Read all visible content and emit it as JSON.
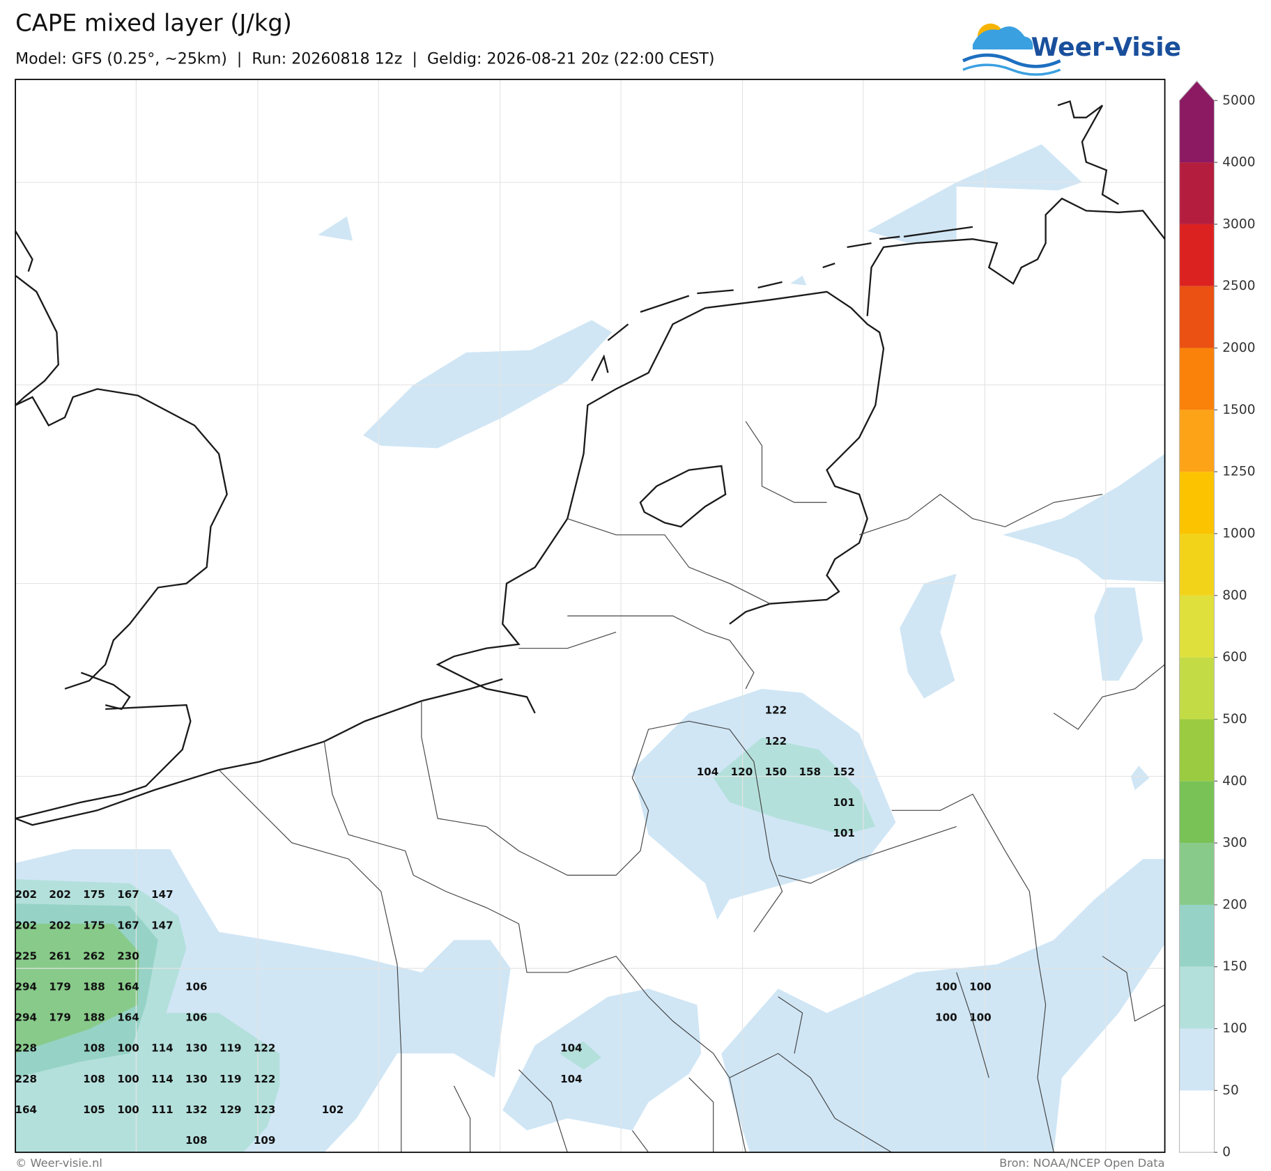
{
  "header": {
    "title": "CAPE mixed layer (J/kg)",
    "subtitle": "Model: GFS (0.25°, ~25km)  |  Run: 20260818 12z  |  Geldig: 2026-08-21 20z (22:00 CEST)"
  },
  "logo": {
    "text": "Weer-Visie"
  },
  "colorbar": {
    "levels": [
      0,
      50,
      100,
      150,
      200,
      300,
      400,
      500,
      600,
      800,
      1000,
      1250,
      1500,
      2000,
      2500,
      3000,
      4000,
      5000
    ],
    "colors": [
      "#ffffff",
      "#d0e6f5",
      "#b4e0dc",
      "#96d3c6",
      "#88ca8a",
      "#78c256",
      "#9bcb40",
      "#c3db45",
      "#e0e03c",
      "#f3d31a",
      "#fcc300",
      "#fda318",
      "#fa820a",
      "#ea5113",
      "#dc2220",
      "#b51d3e",
      "#8b1a63"
    ]
  },
  "grid_values": [
    [
      null,
      null,
      null,
      null,
      null,
      null,
      null,
      null,
      null,
      null,
      null,
      null,
      null,
      null,
      null,
      null,
      null,
      null,
      null,
      null,
      null,
      null,
      122,
      null,
      null,
      null,
      null,
      null,
      null
    ],
    [
      null,
      null,
      null,
      null,
      null,
      null,
      null,
      null,
      null,
      null,
      null,
      null,
      null,
      null,
      null,
      null,
      null,
      null,
      null,
      null,
      null,
      null,
      122,
      null,
      null,
      null,
      null,
      null,
      null
    ],
    [
      null,
      null,
      null,
      null,
      null,
      null,
      null,
      null,
      null,
      null,
      null,
      null,
      null,
      null,
      null,
      null,
      null,
      null,
      null,
      null,
      104,
      120,
      150,
      158,
      152,
      null,
      null,
      null,
      null
    ],
    [
      null,
      null,
      null,
      null,
      null,
      null,
      null,
      null,
      null,
      null,
      null,
      null,
      null,
      null,
      null,
      null,
      null,
      null,
      null,
      null,
      null,
      null,
      null,
      null,
      101,
      null,
      null,
      null,
      null
    ],
    [
      null,
      null,
      null,
      null,
      null,
      null,
      null,
      null,
      null,
      null,
      null,
      null,
      null,
      null,
      null,
      null,
      null,
      null,
      null,
      null,
      null,
      null,
      null,
      null,
      101,
      null,
      null,
      null,
      null
    ],
    [
      null,
      null,
      null,
      null,
      null,
      null,
      null,
      null,
      null,
      null,
      null,
      null,
      null,
      null,
      null,
      null,
      null,
      null,
      null,
      null,
      null,
      null,
      null,
      null,
      null,
      null,
      null,
      null,
      null
    ],
    [
      202,
      202,
      175,
      167,
      147,
      null,
      null,
      null,
      null,
      null,
      null,
      null,
      null,
      null,
      null,
      null,
      null,
      null,
      null,
      null,
      null,
      null,
      null,
      null,
      null,
      null,
      null,
      null,
      null
    ],
    [
      202,
      202,
      175,
      167,
      147,
      null,
      null,
      null,
      null,
      null,
      null,
      null,
      null,
      null,
      null,
      null,
      null,
      null,
      null,
      null,
      null,
      null,
      null,
      null,
      null,
      null,
      null,
      null,
      null
    ],
    [
      225,
      261,
      262,
      230,
      null,
      null,
      null,
      null,
      null,
      null,
      null,
      null,
      null,
      null,
      null,
      null,
      null,
      null,
      null,
      null,
      null,
      null,
      null,
      null,
      null,
      null,
      null,
      null,
      null
    ],
    [
      294,
      179,
      188,
      164,
      null,
      106,
      null,
      null,
      null,
      null,
      null,
      null,
      null,
      null,
      null,
      null,
      null,
      null,
      null,
      null,
      null,
      null,
      null,
      null,
      null,
      null,
      null,
      100,
      100
    ],
    [
      294,
      179,
      188,
      164,
      null,
      106,
      null,
      null,
      null,
      null,
      null,
      null,
      null,
      null,
      null,
      null,
      null,
      null,
      null,
      null,
      null,
      null,
      null,
      null,
      null,
      null,
      null,
      100,
      100
    ],
    [
      228,
      null,
      108,
      100,
      114,
      130,
      119,
      122,
      null,
      null,
      null,
      null,
      null,
      null,
      null,
      null,
      104,
      null,
      null,
      null,
      null,
      null,
      null,
      null,
      null,
      null,
      null,
      null,
      null
    ],
    [
      228,
      null,
      108,
      100,
      114,
      130,
      119,
      122,
      null,
      null,
      null,
      null,
      null,
      null,
      null,
      null,
      104,
      null,
      null,
      null,
      null,
      null,
      null,
      null,
      null,
      null,
      null,
      null,
      null
    ],
    [
      164,
      null,
      105,
      100,
      111,
      132,
      129,
      123,
      null,
      102,
      null,
      null,
      null,
      null,
      null,
      null,
      null,
      null,
      null,
      null,
      null,
      null,
      null,
      null,
      null,
      null,
      null,
      null,
      null
    ],
    [
      null,
      null,
      null,
      null,
      null,
      108,
      null,
      109,
      null,
      null,
      null,
      null,
      null,
      null,
      null,
      null,
      null,
      null,
      null,
      null,
      null,
      null,
      null,
      null,
      null,
      null,
      null,
      null,
      null
    ]
  ],
  "footer": {
    "left": "© Weer-visie.nl",
    "right": "Bron: NOAA/NCEP Open Data"
  }
}
